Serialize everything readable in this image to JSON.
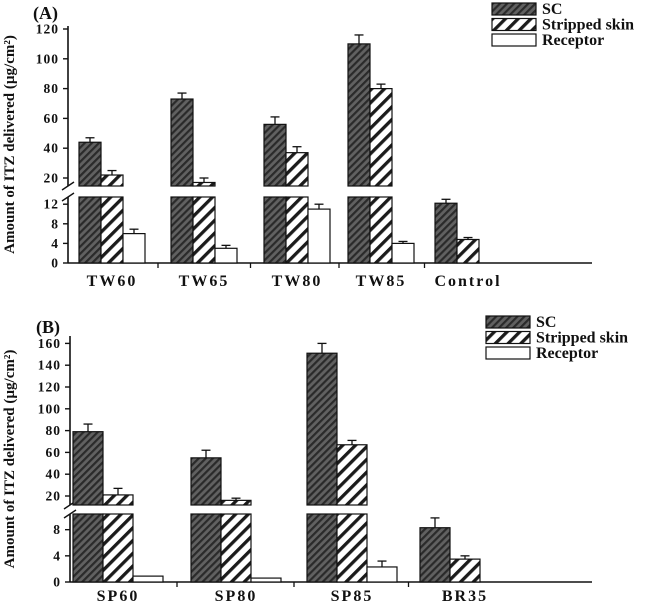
{
  "figure": {
    "background": "#ffffff"
  },
  "colors": {
    "text": "#111111",
    "axis": "#111111",
    "bar_border": "#111111",
    "sc_base": "#616161",
    "sc_hatch": "#2a2a2a",
    "stripe": "#1b1b1b",
    "receptor_fill": "#ffffff"
  },
  "chart_data": [
    {
      "type": "bar",
      "panel_label": "(A)",
      "title": "",
      "ylabel": "Amount of ITZ delivered (µg/cm²)",
      "categories": [
        "TW60",
        "TW65",
        "TW80",
        "TW85",
        "Control"
      ],
      "series": [
        {
          "name": "SC",
          "pattern": "dark-hatch",
          "values": [
            44,
            73,
            56,
            110,
            12.2
          ],
          "errors": [
            3,
            4,
            5,
            6,
            0.8
          ]
        },
        {
          "name": "Stripped skin",
          "pattern": "diagonal-stripe",
          "values": [
            22,
            17,
            37,
            80,
            4.8
          ],
          "errors": [
            3,
            3,
            4,
            3,
            0.4
          ]
        },
        {
          "name": "Receptor",
          "pattern": "white",
          "values": [
            6,
            3,
            11,
            4,
            0
          ],
          "errors": [
            0.9,
            0.6,
            1,
            0.4,
            0
          ]
        }
      ],
      "axis_break": true,
      "upper_axis": {
        "ticks": [
          20,
          40,
          60,
          80,
          100,
          120
        ],
        "range": [
          20,
          120
        ]
      },
      "lower_axis": {
        "ticks": [
          0,
          4,
          8,
          12
        ],
        "range": [
          0,
          13.5
        ]
      },
      "legend": {
        "position": "top-right",
        "entries": [
          "SC",
          "Stripped skin",
          "Receptor"
        ]
      },
      "grid": false
    },
    {
      "type": "bar",
      "panel_label": "(B)",
      "title": "",
      "ylabel": "Amount of ITZ delivered (µg/cm²)",
      "categories": [
        "SP60",
        "SP80",
        "SP85",
        "BR35"
      ],
      "series": [
        {
          "name": "SC",
          "pattern": "dark-hatch",
          "values": [
            79,
            55,
            151,
            8.3
          ],
          "errors": [
            7,
            7,
            9,
            1.5
          ]
        },
        {
          "name": "Stripped skin",
          "pattern": "diagonal-stripe",
          "values": [
            21,
            16,
            67,
            3.5
          ],
          "errors": [
            6,
            2,
            4,
            0.5
          ]
        },
        {
          "name": "Receptor",
          "pattern": "white",
          "values": [
            0.9,
            0.6,
            2.3,
            0
          ],
          "errors": [
            0,
            0,
            0.9,
            0
          ]
        }
      ],
      "axis_break": true,
      "upper_axis": {
        "ticks": [
          20,
          40,
          60,
          80,
          100,
          120,
          140,
          160
        ],
        "range": [
          20,
          160
        ]
      },
      "lower_axis": {
        "ticks": [
          0,
          4,
          8
        ],
        "range": [
          0,
          10.4
        ]
      },
      "legend": {
        "position": "top-right",
        "entries": [
          "SC",
          "Stripped skin",
          "Receptor"
        ]
      },
      "grid": false
    }
  ]
}
